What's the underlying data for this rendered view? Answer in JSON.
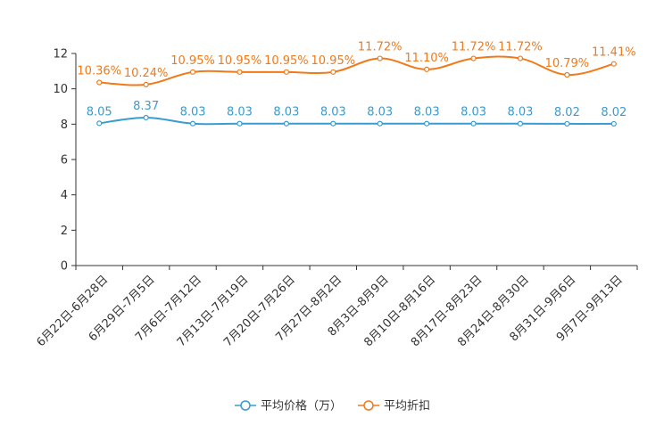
{
  "chart_data": {
    "type": "line",
    "title": "",
    "xlabel": "",
    "ylabel": "",
    "ylim": [
      0,
      12
    ],
    "yticks": [
      0,
      2,
      4,
      6,
      8,
      10,
      12
    ],
    "grid": false,
    "legend_position": "bottom-center",
    "categories": [
      "6月22日-6月28日",
      "6月29日-7月5日",
      "7月6日-7月12日",
      "7月13日-7月19日",
      "7月20日-7月26日",
      "7月27日-8月2日",
      "8月3日-8月9日",
      "8月10日-8月16日",
      "8月17日-8月23日",
      "8月24日-8月30日",
      "8月31日-9月6日",
      "9月7日-9月13日"
    ],
    "series": [
      {
        "name": "平均价格（万）",
        "color": "#3a9bd0",
        "values": [
          8.05,
          8.37,
          8.03,
          8.03,
          8.03,
          8.03,
          8.03,
          8.03,
          8.03,
          8.03,
          8.02,
          8.02
        ],
        "labels": [
          "8.05",
          "8.37",
          "8.03",
          "8.03",
          "8.03",
          "8.03",
          "8.03",
          "8.03",
          "8.03",
          "8.03",
          "8.02",
          "8.02"
        ]
      },
      {
        "name": "平均折扣",
        "color": "#f07a1a",
        "values": [
          10.36,
          10.24,
          10.95,
          10.95,
          10.95,
          10.95,
          11.72,
          11.1,
          11.72,
          11.72,
          10.79,
          11.41
        ],
        "labels": [
          "10.36%",
          "10.24%",
          "10.95%",
          "10.95%",
          "10.95%",
          "10.95%",
          "11.72%",
          "11.10%",
          "11.72%",
          "11.72%",
          "10.79%",
          "11.41%"
        ]
      }
    ]
  }
}
